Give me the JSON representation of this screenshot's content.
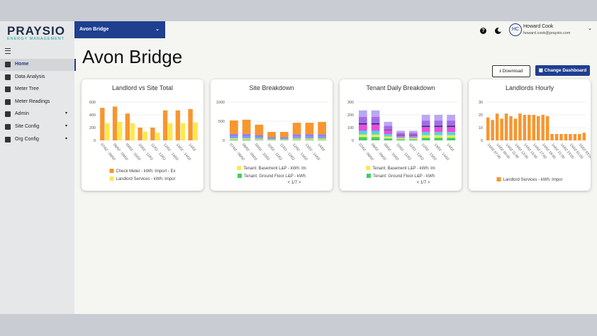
{
  "logo": {
    "name": "PRAYSIO",
    "tagline": "ENERGY MANAGEMENT"
  },
  "site_selector": "Avon Bridge",
  "user": {
    "initials": "HC",
    "name": "Howard Cook",
    "email": "howard.cook@praysio.com"
  },
  "nav": [
    {
      "label": "Home",
      "active": true
    },
    {
      "label": "Data Analysis"
    },
    {
      "label": "Meter Tree"
    },
    {
      "label": "Meter Readings"
    },
    {
      "label": "Admin",
      "expandable": true
    },
    {
      "label": "Site Config",
      "expandable": true
    },
    {
      "label": "Org Config",
      "expandable": true
    }
  ],
  "page": {
    "title": "Avon Bridge",
    "buttons": [
      "Download",
      "Change Dashboard"
    ]
  },
  "chart_data": [
    {
      "type": "bar",
      "title": "Landlord vs Site Total",
      "categories": [
        "07/02 - 08/02",
        "08/02 - 09/02",
        "09/02 - 10/02",
        "10/02 - 11/02",
        "11/02 - 12/02",
        "12/02 - 13/02",
        "13/02 - 14/02",
        "14/02"
      ],
      "series": [
        {
          "name": "Check Meter - kWh: Import - Ex",
          "color": "#f7962f",
          "values": [
            510,
            530,
            420,
            200,
            200,
            470,
            470,
            490
          ]
        },
        {
          "name": "Landlord Services - kWh: Impor",
          "color": "#fde84f",
          "values": [
            270,
            290,
            270,
            140,
            120,
            270,
            270,
            280
          ]
        }
      ],
      "ylim": [
        0,
        600
      ],
      "yticks": [
        0,
        200,
        400,
        600
      ],
      "grid": true
    },
    {
      "type": "bar",
      "stacked": true,
      "title": "Site Breakdown",
      "categories": [
        "07/02 - 08/02",
        "08/02 - 09/02",
        "09/02 - 10/02",
        "10/02 - 11/02",
        "11/02 - 12/02",
        "12/02 - 13/02",
        "13/02 - 14/02",
        "14/02"
      ],
      "series": [
        {
          "name": "Tenant: Ground Floor L&P - kWh",
          "color": "#3ecf63",
          "values": [
            20,
            20,
            15,
            10,
            10,
            15,
            15,
            15
          ]
        },
        {
          "name": "Tenant: Basement L&P - kWh: Im",
          "color": "#fde84f",
          "values": [
            30,
            30,
            25,
            15,
            15,
            30,
            30,
            30
          ]
        },
        {
          "color": "#6fa8f0",
          "values": [
            60,
            60,
            50,
            30,
            30,
            55,
            55,
            55
          ]
        },
        {
          "color": "#9b7bea",
          "values": [
            60,
            60,
            50,
            30,
            30,
            60,
            60,
            60
          ]
        },
        {
          "color": "#f7962f",
          "values": [
            350,
            370,
            270,
            135,
            135,
            300,
            300,
            320
          ]
        }
      ],
      "legend_order": [
        1,
        0
      ],
      "pager": "< 1/7 >",
      "ylim": [
        0,
        1000
      ],
      "yticks": [
        0,
        500,
        1000
      ],
      "grid": true
    },
    {
      "type": "bar",
      "stacked": true,
      "title": "Tenant Daily Breakdown",
      "categories": [
        "07/02 - 08/02",
        "08/02 - 09/02",
        "09/02 - 10/02",
        "10/02 - 11/02",
        "11/02 - 12/02",
        "12/02 - 13/02",
        "13/02 - 14/02",
        "14/02"
      ],
      "series": [
        {
          "name": "Tenant: Ground Floor L&P - kWh",
          "color": "#3ecf63",
          "values": [
            25,
            25,
            15,
            8,
            8,
            20,
            20,
            20
          ]
        },
        {
          "name": "Tenant: Basement L&P - kWh: Im",
          "color": "#fde84f",
          "values": [
            20,
            20,
            15,
            8,
            8,
            20,
            20,
            20
          ]
        },
        {
          "color": "#4fd6e0",
          "values": [
            30,
            30,
            20,
            10,
            10,
            25,
            25,
            25
          ]
        },
        {
          "color": "#e84fd8",
          "values": [
            50,
            50,
            30,
            15,
            15,
            40,
            40,
            40
          ]
        },
        {
          "color": "#1f2f7a",
          "values": [
            10,
            10,
            5,
            4,
            4,
            10,
            10,
            10
          ]
        },
        {
          "color": "#a56ae8",
          "values": [
            50,
            50,
            30,
            15,
            15,
            40,
            40,
            40
          ]
        },
        {
          "color": "#b9a8f2",
          "values": [
            50,
            50,
            30,
            15,
            15,
            45,
            45,
            45
          ]
        }
      ],
      "legend_order": [
        1,
        0
      ],
      "pager": "< 1/7 >",
      "ylim": [
        0,
        300
      ],
      "yticks": [
        0,
        100,
        200,
        300
      ],
      "grid": true
    },
    {
      "type": "bar",
      "title": "Landlords Hourly",
      "categories": [
        "14/02 07:00",
        null,
        "14/02 09:00",
        null,
        "14/02 11:00",
        null,
        "14/02 13:00",
        null,
        "14/02 15:00",
        null,
        "14/02 17:00",
        null,
        "14/02 19:00",
        null,
        "14/02 21:00",
        null,
        "14/02 23:00",
        null,
        "15/02 01:00",
        null,
        "15/02 03:00",
        null
      ],
      "series": [
        {
          "name": "Landlord Services - kWh: Impor",
          "color": "#f7962f",
          "values": [
            18,
            16,
            21,
            17,
            21,
            19,
            17,
            21,
            20,
            20,
            20,
            19,
            20,
            19,
            5,
            5,
            5,
            5,
            5,
            5,
            5,
            6
          ]
        }
      ],
      "ylim": [
        0,
        30
      ],
      "yticks": [
        0,
        10,
        20,
        30
      ],
      "grid": true
    }
  ]
}
